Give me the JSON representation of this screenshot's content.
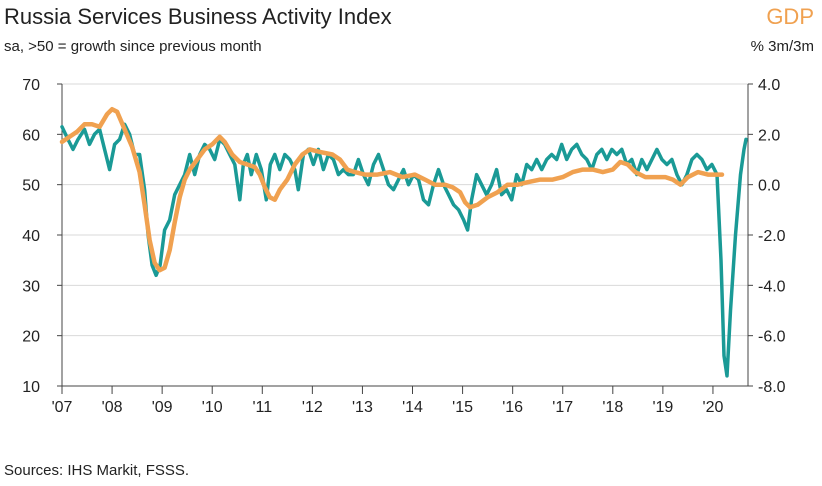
{
  "chart_data": {
    "type": "line",
    "title": "Russia Services Business Activity Index",
    "subtitle": "sa, >50 = growth since previous month",
    "right_axis_title": "GDP",
    "right_axis_unit": "% 3m/3m",
    "source": "Sources: IHS Markit, FSSS.",
    "x_tick_labels": [
      "'07",
      "'08",
      "'09",
      "'10",
      "'11",
      "'12",
      "'13",
      "'14",
      "'15",
      "'16",
      "'17",
      "'18",
      "'19",
      "'20"
    ],
    "x_range": [
      2007.0,
      2020.7
    ],
    "y_left": {
      "min": 10,
      "max": 70,
      "ticks": [
        70,
        60,
        50,
        40,
        30,
        20,
        10
      ],
      "tick_labels": [
        "70",
        "60",
        "50",
        "40",
        "30",
        "20",
        "10"
      ]
    },
    "y_right": {
      "min": -8.0,
      "max": 4.0,
      "ticks": [
        4.0,
        2.0,
        0.0,
        -2.0,
        -4.0,
        -6.0,
        -8.0
      ],
      "tick_labels": [
        "4.0",
        "2.0",
        "0.0",
        "-2.0",
        "-4.0",
        "-6.0",
        "-8.0"
      ]
    },
    "grid": "horizontal",
    "series": [
      {
        "axis": "left",
        "color": "#1a9a96",
        "points": [
          [
            2007.0,
            61.5
          ],
          [
            2007.12,
            59
          ],
          [
            2007.22,
            57
          ],
          [
            2007.32,
            59
          ],
          [
            2007.45,
            61
          ],
          [
            2007.55,
            58
          ],
          [
            2007.65,
            60
          ],
          [
            2007.75,
            61
          ],
          [
            2007.85,
            57
          ],
          [
            2007.95,
            53
          ],
          [
            2008.05,
            58
          ],
          [
            2008.15,
            59
          ],
          [
            2008.25,
            62
          ],
          [
            2008.35,
            60
          ],
          [
            2008.45,
            56
          ],
          [
            2008.55,
            56
          ],
          [
            2008.65,
            49
          ],
          [
            2008.72,
            40
          ],
          [
            2008.8,
            34
          ],
          [
            2008.88,
            32
          ],
          [
            2008.96,
            34
          ],
          [
            2009.05,
            41
          ],
          [
            2009.15,
            43
          ],
          [
            2009.25,
            48
          ],
          [
            2009.35,
            50
          ],
          [
            2009.45,
            52
          ],
          [
            2009.55,
            56
          ],
          [
            2009.65,
            52
          ],
          [
            2009.75,
            56
          ],
          [
            2009.85,
            58
          ],
          [
            2009.95,
            57
          ],
          [
            2010.05,
            55
          ],
          [
            2010.15,
            59
          ],
          [
            2010.25,
            58
          ],
          [
            2010.35,
            56
          ],
          [
            2010.45,
            54
          ],
          [
            2010.55,
            47
          ],
          [
            2010.62,
            54
          ],
          [
            2010.7,
            56
          ],
          [
            2010.78,
            52
          ],
          [
            2010.88,
            56
          ],
          [
            2010.98,
            53
          ],
          [
            2011.08,
            47
          ],
          [
            2011.16,
            54
          ],
          [
            2011.25,
            56
          ],
          [
            2011.35,
            53
          ],
          [
            2011.45,
            56
          ],
          [
            2011.55,
            55
          ],
          [
            2011.65,
            53
          ],
          [
            2011.72,
            49
          ],
          [
            2011.82,
            56
          ],
          [
            2011.92,
            57
          ],
          [
            2012.02,
            54
          ],
          [
            2012.12,
            57
          ],
          [
            2012.22,
            53
          ],
          [
            2012.32,
            56
          ],
          [
            2012.42,
            55
          ],
          [
            2012.52,
            52
          ],
          [
            2012.62,
            53
          ],
          [
            2012.72,
            52
          ],
          [
            2012.82,
            52
          ],
          [
            2012.92,
            55
          ],
          [
            2013.02,
            52
          ],
          [
            2013.12,
            50
          ],
          [
            2013.22,
            54
          ],
          [
            2013.32,
            56
          ],
          [
            2013.42,
            53
          ],
          [
            2013.52,
            50
          ],
          [
            2013.62,
            49
          ],
          [
            2013.72,
            51
          ],
          [
            2013.82,
            53
          ],
          [
            2013.92,
            50
          ],
          [
            2014.02,
            52
          ],
          [
            2014.12,
            51
          ],
          [
            2014.22,
            47
          ],
          [
            2014.32,
            46
          ],
          [
            2014.42,
            50
          ],
          [
            2014.52,
            53
          ],
          [
            2014.62,
            50
          ],
          [
            2014.72,
            48
          ],
          [
            2014.82,
            46
          ],
          [
            2014.92,
            45
          ],
          [
            2015.02,
            43
          ],
          [
            2015.1,
            41
          ],
          [
            2015.18,
            47
          ],
          [
            2015.28,
            52
          ],
          [
            2015.38,
            50
          ],
          [
            2015.48,
            48
          ],
          [
            2015.58,
            50
          ],
          [
            2015.68,
            53
          ],
          [
            2015.78,
            48
          ],
          [
            2015.88,
            49
          ],
          [
            2015.98,
            47
          ],
          [
            2016.08,
            52
          ],
          [
            2016.18,
            50
          ],
          [
            2016.28,
            54
          ],
          [
            2016.38,
            53
          ],
          [
            2016.48,
            55
          ],
          [
            2016.58,
            53
          ],
          [
            2016.68,
            55
          ],
          [
            2016.78,
            56
          ],
          [
            2016.88,
            55
          ],
          [
            2016.98,
            58
          ],
          [
            2017.08,
            55
          ],
          [
            2017.18,
            57
          ],
          [
            2017.28,
            58
          ],
          [
            2017.38,
            56
          ],
          [
            2017.48,
            55
          ],
          [
            2017.58,
            53
          ],
          [
            2017.68,
            56
          ],
          [
            2017.78,
            57
          ],
          [
            2017.88,
            55
          ],
          [
            2017.98,
            57
          ],
          [
            2018.08,
            56
          ],
          [
            2018.18,
            57
          ],
          [
            2018.28,
            54
          ],
          [
            2018.38,
            55
          ],
          [
            2018.48,
            52
          ],
          [
            2018.58,
            55
          ],
          [
            2018.68,
            53
          ],
          [
            2018.78,
            55
          ],
          [
            2018.88,
            57
          ],
          [
            2018.98,
            55
          ],
          [
            2019.08,
            54
          ],
          [
            2019.18,
            55
          ],
          [
            2019.28,
            52
          ],
          [
            2019.38,
            50
          ],
          [
            2019.48,
            52
          ],
          [
            2019.58,
            55
          ],
          [
            2019.68,
            56
          ],
          [
            2019.78,
            55
          ],
          [
            2019.88,
            53
          ],
          [
            2019.98,
            54
          ],
          [
            2020.08,
            52
          ],
          [
            2020.16,
            35
          ],
          [
            2020.22,
            16
          ],
          [
            2020.28,
            12
          ],
          [
            2020.35,
            25
          ],
          [
            2020.45,
            40
          ],
          [
            2020.55,
            52
          ],
          [
            2020.62,
            57
          ],
          [
            2020.66,
            59
          ]
        ]
      },
      {
        "axis": "right",
        "color": "#f0a150",
        "points": [
          [
            2007.0,
            1.7
          ],
          [
            2007.15,
            1.9
          ],
          [
            2007.3,
            2.1
          ],
          [
            2007.45,
            2.4
          ],
          [
            2007.6,
            2.4
          ],
          [
            2007.75,
            2.3
          ],
          [
            2007.9,
            2.8
          ],
          [
            2008.0,
            3.0
          ],
          [
            2008.1,
            2.9
          ],
          [
            2008.25,
            2.2
          ],
          [
            2008.4,
            1.5
          ],
          [
            2008.55,
            0.5
          ],
          [
            2008.65,
            -0.8
          ],
          [
            2008.75,
            -2.2
          ],
          [
            2008.85,
            -3.1
          ],
          [
            2008.95,
            -3.4
          ],
          [
            2009.05,
            -3.3
          ],
          [
            2009.15,
            -2.6
          ],
          [
            2009.25,
            -1.5
          ],
          [
            2009.35,
            -0.5
          ],
          [
            2009.45,
            0.2
          ],
          [
            2009.55,
            0.6
          ],
          [
            2009.7,
            1.0
          ],
          [
            2009.85,
            1.4
          ],
          [
            2010.0,
            1.6
          ],
          [
            2010.15,
            1.9
          ],
          [
            2010.25,
            1.7
          ],
          [
            2010.4,
            1.2
          ],
          [
            2010.55,
            0.9
          ],
          [
            2010.7,
            0.8
          ],
          [
            2010.85,
            0.7
          ],
          [
            2010.95,
            0.4
          ],
          [
            2011.05,
            -0.1
          ],
          [
            2011.15,
            -0.5
          ],
          [
            2011.25,
            -0.6
          ],
          [
            2011.35,
            -0.2
          ],
          [
            2011.5,
            0.2
          ],
          [
            2011.65,
            0.8
          ],
          [
            2011.8,
            1.2
          ],
          [
            2011.95,
            1.4
          ],
          [
            2012.15,
            1.3
          ],
          [
            2012.4,
            1.2
          ],
          [
            2012.55,
            1.0
          ],
          [
            2012.7,
            0.6
          ],
          [
            2012.85,
            0.5
          ],
          [
            2013.05,
            0.4
          ],
          [
            2013.3,
            0.4
          ],
          [
            2013.55,
            0.5
          ],
          [
            2013.8,
            0.3
          ],
          [
            2014.05,
            0.4
          ],
          [
            2014.25,
            0.2
          ],
          [
            2014.45,
            0.0
          ],
          [
            2014.65,
            0.0
          ],
          [
            2014.8,
            -0.1
          ],
          [
            2014.95,
            -0.3
          ],
          [
            2015.05,
            -0.7
          ],
          [
            2015.15,
            -0.9
          ],
          [
            2015.3,
            -0.8
          ],
          [
            2015.5,
            -0.5
          ],
          [
            2015.7,
            -0.3
          ],
          [
            2015.9,
            0.0
          ],
          [
            2016.1,
            0.0
          ],
          [
            2016.3,
            0.1
          ],
          [
            2016.55,
            0.2
          ],
          [
            2016.8,
            0.2
          ],
          [
            2017.0,
            0.3
          ],
          [
            2017.2,
            0.5
          ],
          [
            2017.4,
            0.6
          ],
          [
            2017.6,
            0.6
          ],
          [
            2017.8,
            0.5
          ],
          [
            2018.0,
            0.6
          ],
          [
            2018.15,
            0.9
          ],
          [
            2018.3,
            0.8
          ],
          [
            2018.45,
            0.5
          ],
          [
            2018.65,
            0.3
          ],
          [
            2018.85,
            0.3
          ],
          [
            2019.05,
            0.3
          ],
          [
            2019.2,
            0.2
          ],
          [
            2019.35,
            0.0
          ],
          [
            2019.5,
            0.3
          ],
          [
            2019.7,
            0.5
          ],
          [
            2019.9,
            0.4
          ],
          [
            2020.1,
            0.4
          ],
          [
            2020.18,
            0.4
          ]
        ]
      }
    ]
  }
}
